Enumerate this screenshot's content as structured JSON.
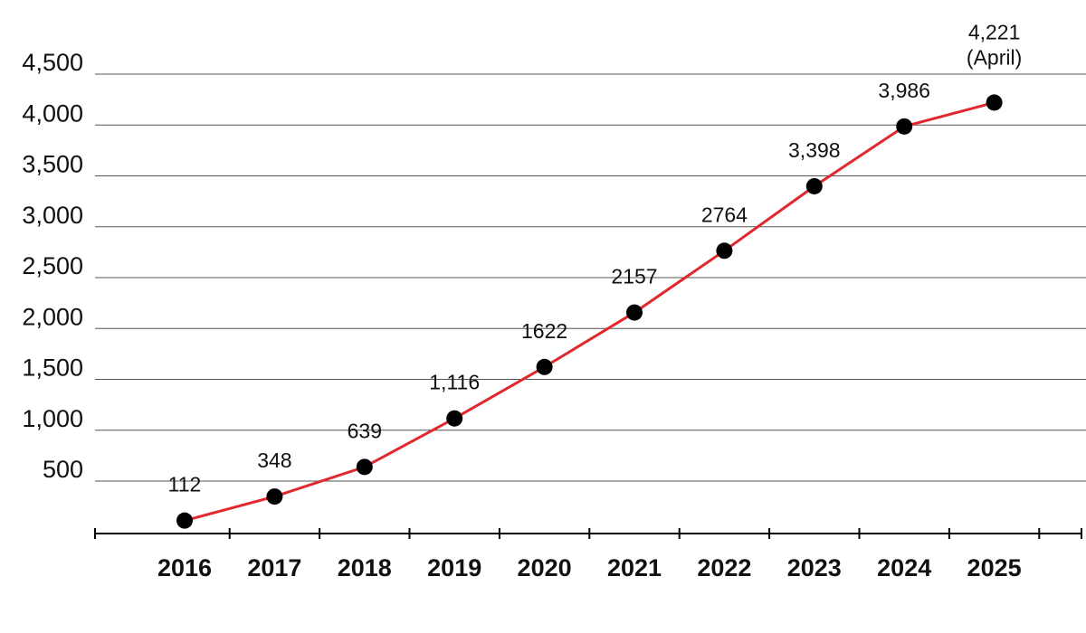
{
  "chart_data": {
    "type": "line",
    "title": "",
    "xlabel": "",
    "ylabel": "",
    "categories": [
      "2016",
      "2017",
      "2018",
      "2019",
      "2020",
      "2021",
      "2022",
      "2023",
      "2024",
      "2025"
    ],
    "series": [
      {
        "values": [
          112,
          348,
          639,
          1116,
          1622,
          2157,
          2764,
          3398,
          3986,
          4221
        ],
        "data_labels": [
          "112",
          "348",
          "639",
          "1,116",
          "1622",
          "2157",
          "2764",
          "3,398",
          "3,986",
          "4,221"
        ]
      }
    ],
    "last_label_note": "(April)",
    "y_ticks": [
      {
        "value": 500,
        "label": "500"
      },
      {
        "value": 1000,
        "label": "1,000"
      },
      {
        "value": 1500,
        "label": "1,500"
      },
      {
        "value": 2000,
        "label": "2,000"
      },
      {
        "value": 2500,
        "label": "2,500"
      },
      {
        "value": 3000,
        "label": "3,000"
      },
      {
        "value": 3500,
        "label": "3,500"
      },
      {
        "value": 4000,
        "label": "4,000"
      },
      {
        "value": 4500,
        "label": "4,500"
      }
    ],
    "ylim": [
      0,
      4500
    ],
    "grid": true,
    "legend": "none",
    "colors": {
      "line": "#e0282e",
      "marker": "#000000",
      "grid": "#555555"
    }
  }
}
